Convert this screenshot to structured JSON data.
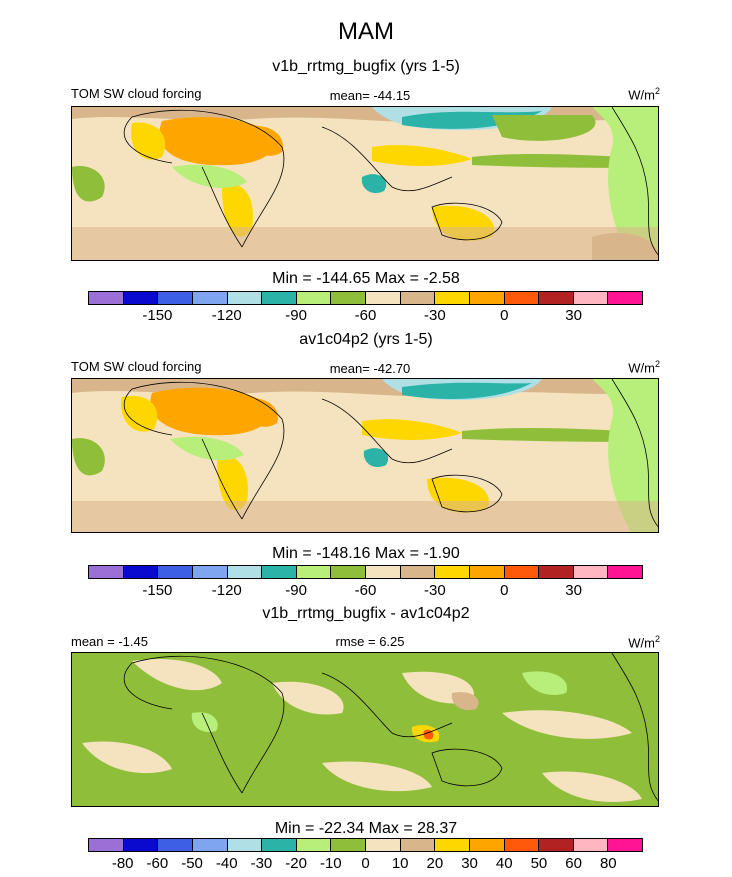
{
  "title": "MAM",
  "units": "W/m",
  "units_sup": "2",
  "panels": [
    {
      "title": "v1b_rrtmg_bugfix (yrs 1-5)",
      "left_label": "TOM SW cloud forcing",
      "center_label": "mean= -44.15",
      "minmax": "Min = -144.65 Max =  -2.58"
    },
    {
      "title": "av1c04p2 (yrs 1-5)",
      "left_label": "TOM SW cloud forcing",
      "center_label": "mean= -42.70",
      "minmax": "Min = -148.16 Max =  -1.90"
    },
    {
      "title": "v1b_rrtmg_bugfix - av1c04p2",
      "left_label": "mean =  -1.45",
      "center_label": "rmse =   6.25",
      "minmax": "Min = -22.34 Max =  28.37"
    }
  ],
  "colorbars": {
    "main_colors": [
      "#9a6fd6",
      "#0a0acf",
      "#3d5fe6",
      "#7fa5f0",
      "#b0e0e6",
      "#2bb3a8",
      "#b7ef7a",
      "#8fbf3a",
      "#f5e3bf",
      "#d8b58a",
      "#ffd700",
      "#ffa500",
      "#ff5a0a",
      "#b22222",
      "#ffb6c1",
      "#ff1493"
    ],
    "main_ticks": [
      "-150",
      "-120",
      "-90",
      "-60",
      "-30",
      "0",
      "30"
    ],
    "diff_colors": [
      "#9a6fd6",
      "#0a0acf",
      "#3d5fe6",
      "#7fa5f0",
      "#b0e0e6",
      "#2bb3a8",
      "#b7ef7a",
      "#8fbf3a",
      "#f5e3bf",
      "#d8b58a",
      "#ffd700",
      "#ffa500",
      "#ff5a0a",
      "#b22222",
      "#ffb6c1",
      "#ff1493"
    ],
    "diff_ticks": [
      "-80",
      "-60",
      "-50",
      "-40",
      "-30",
      "-20",
      "-10",
      "0",
      "10",
      "20",
      "30",
      "40",
      "50",
      "60",
      "80"
    ]
  },
  "chart_data": [
    {
      "type": "heatmap",
      "title": "v1b_rrtmg_bugfix (yrs 1-5)",
      "variable": "TOM SW cloud forcing",
      "mean": -44.15,
      "min": -144.65,
      "max": -2.58,
      "colorbar_ticks": [
        -150,
        -120,
        -90,
        -60,
        -30,
        0,
        30
      ]
    },
    {
      "type": "heatmap",
      "title": "av1c04p2 (yrs 1-5)",
      "variable": "TOM SW cloud forcing",
      "mean": -42.7,
      "min": -148.16,
      "max": -1.9,
      "colorbar_ticks": [
        -150,
        -120,
        -90,
        -60,
        -30,
        0,
        30
      ]
    },
    {
      "type": "heatmap",
      "title": "v1b_rrtmg_bugfix - av1c04p2",
      "mean": -1.45,
      "rmse": 6.25,
      "min": -22.34,
      "max": 28.37,
      "colorbar_ticks": [
        -80,
        -60,
        -50,
        -40,
        -30,
        -20,
        -10,
        0,
        10,
        20,
        30,
        40,
        50,
        60,
        80
      ]
    }
  ]
}
